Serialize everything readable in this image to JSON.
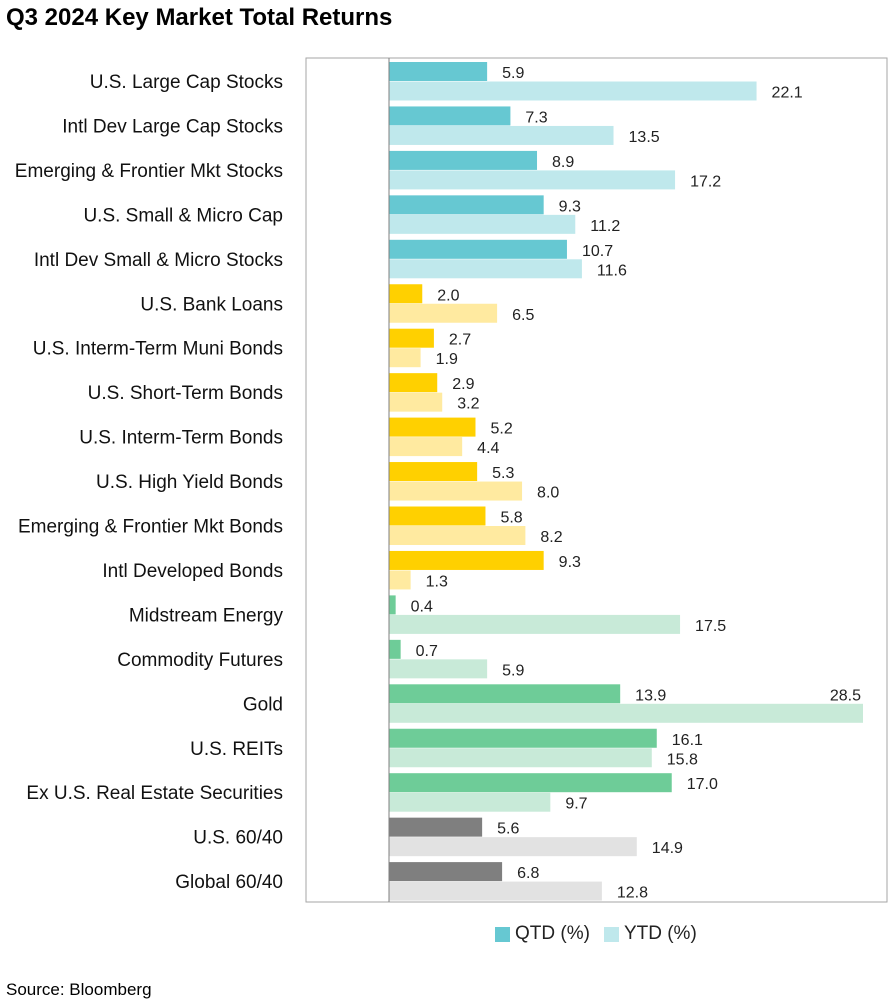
{
  "chart_data": {
    "type": "bar",
    "orientation": "horizontal",
    "title": "Q3 2024 Key Market Total Returns",
    "categories": [
      "U.S. Large Cap Stocks",
      "Intl Dev Large Cap Stocks",
      "Emerging & Frontier Mkt Stocks",
      "U.S. Small & Micro Cap",
      "Intl Dev Small & Micro Stocks",
      "U.S. Bank Loans",
      "U.S. Interm-Term Muni Bonds",
      "U.S. Short-Term Bonds",
      "U.S. Interm-Term Bonds",
      "U.S. High Yield Bonds",
      "Emerging & Frontier Mkt Bonds",
      "Intl Developed Bonds",
      "Midstream Energy",
      "Commodity Futures",
      "Gold",
      "U.S. REITs",
      "Ex U.S. Real Estate Securities",
      "U.S. 60/40",
      "Global 60/40"
    ],
    "series": [
      {
        "name": "QTD (%)",
        "values": [
          5.9,
          7.3,
          8.9,
          9.3,
          10.7,
          2.0,
          2.7,
          2.9,
          5.2,
          5.3,
          5.8,
          9.3,
          0.4,
          0.7,
          13.9,
          16.1,
          17.0,
          5.6,
          6.8
        ],
        "labels": [
          "5.9",
          "7.3",
          "8.9",
          "9.3",
          "10.7",
          "2.0",
          "2.7",
          "2.9",
          "5.2",
          "5.3",
          "5.8",
          "9.3",
          "0.4",
          "0.7",
          "13.9",
          "16.1",
          "17.0",
          "5.6",
          "6.8"
        ]
      },
      {
        "name": "YTD (%)",
        "values": [
          22.1,
          13.5,
          17.2,
          11.2,
          11.6,
          6.5,
          1.9,
          3.2,
          4.4,
          8.0,
          8.2,
          1.3,
          17.5,
          5.9,
          28.5,
          15.8,
          9.7,
          14.9,
          12.8
        ],
        "labels": [
          "22.1",
          "13.5",
          "17.2",
          "11.2",
          "11.6",
          "6.5",
          "1.9",
          "3.2",
          "4.4",
          "8.0",
          "8.2",
          "1.3",
          "17.5",
          "5.9",
          "28.5",
          "15.8",
          "9.7",
          "14.9",
          "12.8"
        ]
      }
    ],
    "groups": [
      {
        "qtd_color": "#66c8d2",
        "ytd_color": "#bfe8ec"
      },
      {
        "qtd_color": "#ffd000",
        "ytd_color": "#ffeaa0"
      },
      {
        "qtd_color": "#6ecc98",
        "ytd_color": "#c8ead8"
      },
      {
        "qtd_color": "#7f7f7f",
        "ytd_color": "#e2e2e2"
      }
    ],
    "category_group": [
      0,
      0,
      0,
      0,
      0,
      1,
      1,
      1,
      1,
      1,
      1,
      1,
      2,
      2,
      2,
      2,
      2,
      3,
      3
    ],
    "xlim": [
      0,
      28.5
    ],
    "grid": false,
    "legend_position": "bottom"
  },
  "legend": {
    "qtd_label": "QTD (%)",
    "ytd_label": "YTD (%)",
    "qtd_color": "#66c8d2",
    "ytd_color": "#bfe8ec"
  },
  "source": "Source: Bloomberg"
}
